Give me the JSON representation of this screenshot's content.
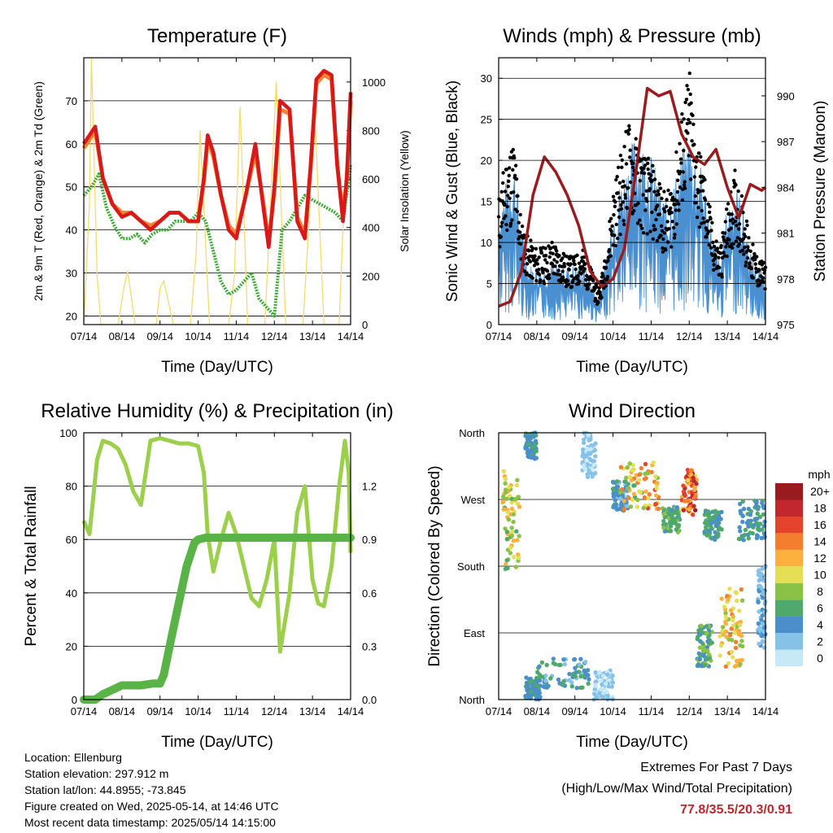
{
  "charts": {
    "temperature": {
      "title": "Temperature (F)",
      "xlabel": "Time (Day/UTC)",
      "ylabel_left": "2m & 9m T (Red, Orange) & 2m Td (Green)",
      "ylabel_right": "Solar Insolation (Yellow)"
    },
    "winds": {
      "title": "Winds (mph) & Pressure (mb)",
      "xlabel": "Time (Day/UTC)",
      "ylabel_left": "Sonic Wind & Gust (Blue, Black)",
      "ylabel_right": "Station Pressure (Maroon)"
    },
    "humidity": {
      "title": "Relative Humidity (%) & Precipitation (in)",
      "xlabel": "Time (Day/UTC)",
      "ylabel_left": "Percent & Total Rainfall"
    },
    "direction": {
      "title": "Wind Direction",
      "xlabel": "Time (Day/UTC)",
      "ylabel_left": "Direction (Colored By Speed)",
      "colorbar_title": "mph"
    }
  },
  "info": {
    "location": "Location: Ellenburg",
    "elevation": "Station elevation: 297.912 m",
    "latlon": "Station lat/lon: 44.8955; -73.845",
    "created": "Figure created on Wed, 2025-05-14, at 14:46 UTC",
    "timestamp": "Most recent data timestamp: 2025/05/14 14:15:00"
  },
  "extremes": {
    "title": "Extremes For Past 7 Days",
    "subtitle": "(High/Low/Max Wind/Total Precipitation)",
    "values": "77.8/35.5/20.3/0.91",
    "color": "#c0272d"
  },
  "chart_data": [
    {
      "id": "temperature",
      "type": "line",
      "x_ticks": [
        "07/14",
        "08/14",
        "09/14",
        "10/14",
        "11/14",
        "12/14",
        "13/14",
        "14/14"
      ],
      "xlim": [
        0,
        7
      ],
      "ylim": [
        18,
        80
      ],
      "y_ticks": [
        20,
        30,
        40,
        50,
        60,
        70
      ],
      "y2lim": [
        0,
        1100
      ],
      "y2_ticks": [
        0,
        200,
        400,
        600,
        800,
        1000
      ],
      "colors": {
        "t2m": "#d7191c",
        "t9m": "#f58231",
        "td2m": "#3aaa35",
        "solar": "#f5dc6a"
      },
      "series": [
        {
          "key": "t2m",
          "x": [
            0,
            0.15,
            0.3,
            0.5,
            0.75,
            1.0,
            1.25,
            1.5,
            1.75,
            2.0,
            2.25,
            2.5,
            2.75,
            3.0,
            3.15,
            3.25,
            3.4,
            3.6,
            3.8,
            4.0,
            4.25,
            4.5,
            4.7,
            4.85,
            5.0,
            5.15,
            5.4,
            5.6,
            5.8,
            5.95,
            6.1,
            6.3,
            6.5,
            6.65,
            6.8,
            6.9,
            7.0
          ],
          "y": [
            60,
            62,
            64,
            52,
            46,
            43,
            44,
            42,
            40,
            42,
            44,
            44,
            42,
            42,
            52,
            62,
            58,
            48,
            40,
            38,
            48,
            60,
            46,
            36,
            50,
            70,
            68,
            42,
            38,
            55,
            75,
            77,
            76,
            55,
            42,
            52,
            72
          ]
        },
        {
          "key": "t9m",
          "x": [
            0,
            0.15,
            0.3,
            0.5,
            0.75,
            1.0,
            1.25,
            1.5,
            1.75,
            2.0,
            2.25,
            2.5,
            2.75,
            3.0,
            3.15,
            3.25,
            3.4,
            3.6,
            3.8,
            4.0,
            4.25,
            4.5,
            4.7,
            4.85,
            5.0,
            5.15,
            5.4,
            5.6,
            5.8,
            5.95,
            6.1,
            6.3,
            6.5,
            6.65,
            6.8,
            6.9,
            7.0
          ],
          "y": [
            59,
            61,
            63,
            52,
            46,
            44,
            44,
            42,
            41,
            42,
            44,
            44,
            42,
            42,
            51,
            61,
            57,
            48,
            41,
            39,
            48,
            58,
            47,
            37,
            49,
            68,
            67,
            43,
            39,
            54,
            74,
            76,
            75,
            55,
            43,
            52,
            70
          ]
        },
        {
          "key": "td2m",
          "x": [
            0,
            0.2,
            0.4,
            0.6,
            0.8,
            1.0,
            1.2,
            1.4,
            1.6,
            1.8,
            2.0,
            2.2,
            2.4,
            2.6,
            2.8,
            3.0,
            3.2,
            3.4,
            3.6,
            3.8,
            4.0,
            4.2,
            4.4,
            4.6,
            4.8,
            5.0,
            5.2,
            5.4,
            5.6,
            5.8,
            6.0,
            6.2,
            6.4,
            6.6,
            6.8,
            7.0
          ],
          "y": [
            48,
            50,
            53,
            45,
            41,
            38,
            38,
            39,
            37,
            39,
            40,
            40,
            42,
            42,
            42,
            44,
            42,
            35,
            28,
            25,
            26,
            28,
            30,
            24,
            22,
            20,
            40,
            42,
            45,
            48,
            47,
            46,
            45,
            44,
            42,
            55
          ]
        },
        {
          "key": "solar",
          "x": [
            0,
            0.15,
            0.2,
            0.35,
            0.45,
            0.6,
            0.9,
            1.05,
            1.15,
            1.35,
            1.9,
            2.0,
            2.1,
            2.35,
            2.8,
            2.95,
            3.05,
            3.3,
            3.8,
            3.95,
            4.1,
            4.3,
            4.75,
            4.9,
            5.05,
            5.3,
            5.75,
            5.9,
            6.05,
            6.3,
            6.7,
            6.85,
            7.0
          ],
          "y": [
            0,
            500,
            1100,
            200,
            0,
            0,
            0,
            150,
            220,
            0,
            0,
            150,
            180,
            0,
            0,
            300,
            800,
            0,
            0,
            200,
            900,
            0,
            0,
            500,
            1000,
            0,
            0,
            400,
            900,
            0,
            0,
            600,
            800
          ]
        }
      ]
    },
    {
      "id": "winds",
      "type": "line",
      "x_ticks": [
        "07/14",
        "08/14",
        "09/14",
        "10/14",
        "11/14",
        "12/14",
        "13/14",
        "14/14"
      ],
      "xlim": [
        0,
        7
      ],
      "ylim": [
        0,
        32.5
      ],
      "y_ticks": [
        0,
        5,
        10,
        15,
        20,
        25,
        30
      ],
      "y2lim": [
        975,
        992.5
      ],
      "y2_ticks": [
        975,
        978,
        981,
        984,
        987,
        990
      ],
      "colors": {
        "wind": "#4a90d0",
        "gust": "#000000",
        "pressure": "#9b1c1f"
      },
      "series": [
        {
          "key": "wind",
          "x": [
            0,
            0.2,
            0.4,
            0.6,
            0.8,
            1.0,
            1.2,
            1.4,
            1.6,
            1.8,
            2.0,
            2.2,
            2.4,
            2.6,
            2.8,
            3.0,
            3.2,
            3.4,
            3.6,
            3.8,
            4.0,
            4.2,
            4.4,
            4.6,
            4.8,
            5.0,
            5.2,
            5.4,
            5.6,
            5.8,
            6.0,
            6.2,
            6.4,
            6.6,
            6.8,
            7.0
          ],
          "y": [
            10,
            12,
            14,
            8,
            5,
            5,
            5,
            5,
            5,
            5,
            5,
            5,
            4,
            2,
            5,
            10,
            12,
            14,
            16,
            15,
            14,
            12,
            10,
            12,
            14,
            16,
            14,
            12,
            8,
            5,
            10,
            12,
            10,
            6,
            5,
            4
          ]
        },
        {
          "key": "gust",
          "x": [
            0,
            0.2,
            0.4,
            0.6,
            0.8,
            1.0,
            1.2,
            1.4,
            1.6,
            1.8,
            2.0,
            2.2,
            2.4,
            2.6,
            2.8,
            3.0,
            3.2,
            3.4,
            3.6,
            3.8,
            4.0,
            4.2,
            4.4,
            4.6,
            4.8,
            5.0,
            5.2,
            5.4,
            5.6,
            5.8,
            6.0,
            6.2,
            6.4,
            6.6,
            6.8,
            7.0
          ],
          "y": [
            15,
            20,
            22,
            12,
            10,
            9,
            9,
            10,
            9,
            8,
            8,
            9,
            7,
            4,
            8,
            16,
            20,
            24,
            22,
            20,
            19,
            17,
            15,
            18,
            25,
            30,
            22,
            18,
            12,
            9,
            14,
            18,
            15,
            10,
            8,
            7
          ]
        },
        {
          "key": "pressure",
          "x": [
            0,
            0.3,
            0.6,
            0.9,
            1.2,
            1.5,
            1.8,
            2.1,
            2.4,
            2.7,
            3.0,
            3.3,
            3.6,
            3.9,
            4.2,
            4.5,
            4.8,
            5.1,
            5.4,
            5.7,
            6.0,
            6.3,
            6.6,
            6.9,
            7.0
          ],
          "y": [
            976.2,
            976.5,
            978.5,
            983.5,
            986.0,
            985.0,
            983.5,
            981.5,
            978.5,
            977.5,
            978.0,
            980.0,
            985.0,
            990.5,
            990.0,
            990.3,
            987.5,
            986.0,
            985.5,
            986.5,
            984.0,
            982.0,
            984.2,
            983.8,
            984.0
          ]
        }
      ]
    },
    {
      "id": "humidity",
      "type": "line",
      "x_ticks": [
        "07/14",
        "08/14",
        "09/14",
        "10/14",
        "11/14",
        "12/14",
        "13/14",
        "14/14"
      ],
      "xlim": [
        0,
        7
      ],
      "ylim": [
        0,
        100
      ],
      "y_ticks": [
        0,
        20,
        40,
        60,
        80,
        100
      ],
      "y2lim": [
        0,
        1.5
      ],
      "y2_ticks": [
        "0.0",
        "0.3",
        "0.6",
        "0.9",
        "1.2"
      ],
      "colors": {
        "rh": "#9ccf4c",
        "precip": "#5ab347"
      },
      "series": [
        {
          "key": "rh",
          "x": [
            0,
            0.15,
            0.35,
            0.5,
            0.7,
            0.9,
            1.1,
            1.3,
            1.5,
            1.75,
            2.0,
            2.25,
            2.5,
            2.75,
            3.0,
            3.15,
            3.25,
            3.4,
            3.6,
            3.8,
            4.0,
            4.2,
            4.4,
            4.6,
            4.8,
            5.0,
            5.15,
            5.4,
            5.6,
            5.8,
            6.0,
            6.15,
            6.3,
            6.5,
            6.7,
            6.85,
            6.95,
            7.0
          ],
          "y": [
            67,
            62,
            90,
            97,
            96,
            94,
            88,
            78,
            73,
            97,
            98,
            97,
            96,
            96,
            95,
            85,
            62,
            48,
            60,
            70,
            62,
            50,
            38,
            35,
            45,
            60,
            18,
            40,
            70,
            80,
            45,
            36,
            35,
            50,
            80,
            97,
            85,
            55
          ]
        },
        {
          "key": "precip",
          "x": [
            0,
            0.3,
            0.5,
            0.8,
            1.0,
            1.5,
            1.8,
            2.0,
            2.1,
            2.3,
            2.5,
            2.7,
            2.9,
            3.0,
            3.2,
            3.5,
            4.0,
            5.0,
            6.0,
            7.0
          ],
          "y": [
            0.0,
            0.0,
            0.03,
            0.06,
            0.08,
            0.08,
            0.09,
            0.09,
            0.14,
            0.35,
            0.55,
            0.75,
            0.88,
            0.9,
            0.91,
            0.91,
            0.91,
            0.91,
            0.91,
            0.91
          ]
        }
      ]
    },
    {
      "id": "direction",
      "type": "scatter",
      "x_ticks": [
        "07/14",
        "08/14",
        "09/14",
        "10/14",
        "11/14",
        "12/14",
        "13/14",
        "14/14"
      ],
      "xlim": [
        0,
        7
      ],
      "ylim": [
        0,
        360
      ],
      "y_ticks": [
        {
          "deg": 0,
          "label": "North"
        },
        {
          "deg": 90,
          "label": "East"
        },
        {
          "deg": 180,
          "label": "South"
        },
        {
          "deg": 270,
          "label": "West"
        },
        {
          "deg": 360,
          "label": "North"
        }
      ],
      "colorbar_labels": [
        "0",
        "2",
        "4",
        "6",
        "8",
        "10",
        "12",
        "14",
        "16",
        "18",
        "20+"
      ],
      "colorbar_colors": [
        "#c6e8f7",
        "#86c2e8",
        "#4a8fc9",
        "#4ea96a",
        "#89c246",
        "#e4df55",
        "#fbb040",
        "#f37e2f",
        "#e5432b",
        "#c1272d",
        "#981b1e"
      ],
      "clusters": [
        {
          "x": [
            0.1,
            0.55
          ],
          "y": [
            175,
            310
          ],
          "speed": [
            6,
            13
          ]
        },
        {
          "x": [
            0.7,
            1.0
          ],
          "y": [
            325,
            360
          ],
          "speed": [
            3,
            6
          ]
        },
        {
          "x": [
            0.7,
            1.1
          ],
          "y": [
            0,
            30
          ],
          "speed": [
            3,
            6
          ]
        },
        {
          "x": [
            1.0,
            2.4
          ],
          "y": [
            15,
            55
          ],
          "speed": [
            2,
            7
          ]
        },
        {
          "x": [
            2.2,
            2.55
          ],
          "y": [
            300,
            360
          ],
          "speed": [
            0,
            3
          ]
        },
        {
          "x": [
            2.5,
            3.0
          ],
          "y": [
            0,
            40
          ],
          "speed": [
            0,
            3
          ]
        },
        {
          "x": [
            3.0,
            3.4
          ],
          "y": [
            255,
            295
          ],
          "speed": [
            2,
            6
          ]
        },
        {
          "x": [
            3.2,
            4.2
          ],
          "y": [
            255,
            320
          ],
          "speed": [
            6,
            16
          ]
        },
        {
          "x": [
            4.3,
            4.75
          ],
          "y": [
            225,
            260
          ],
          "speed": [
            4,
            8
          ]
        },
        {
          "x": [
            4.8,
            5.2
          ],
          "y": [
            245,
            310
          ],
          "speed": [
            10,
            20
          ]
        },
        {
          "x": [
            5.4,
            5.85
          ],
          "y": [
            215,
            255
          ],
          "speed": [
            3,
            7
          ]
        },
        {
          "x": [
            5.2,
            5.6
          ],
          "y": [
            45,
            100
          ],
          "speed": [
            4,
            8
          ]
        },
        {
          "x": [
            5.8,
            6.4
          ],
          "y": [
            40,
            150
          ],
          "speed": [
            8,
            14
          ]
        },
        {
          "x": [
            6.3,
            7.0
          ],
          "y": [
            215,
            270
          ],
          "speed": [
            3,
            6
          ]
        },
        {
          "x": [
            6.8,
            7.0
          ],
          "y": [
            70,
            180
          ],
          "speed": [
            1,
            4
          ]
        }
      ]
    }
  ]
}
